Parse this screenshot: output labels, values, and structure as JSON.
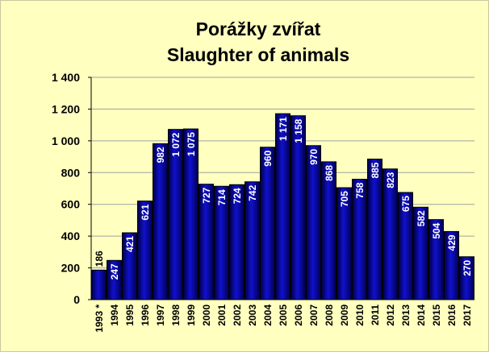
{
  "chart_data": {
    "type": "bar",
    "title": "Porážky zvířat",
    "subtitle": "Slaughter of animals",
    "categories": [
      "1993 *",
      "1994",
      "1995",
      "1996",
      "1997",
      "1998",
      "1999",
      "2000",
      "2001",
      "2002",
      "2003",
      "2004",
      "2005",
      "2006",
      "2007",
      "2008",
      "2009",
      "2010",
      "2011",
      "2012",
      "2013",
      "2014",
      "2015",
      "2016",
      "2017"
    ],
    "values": [
      186,
      247,
      421,
      621,
      982,
      1072,
      1075,
      727,
      714,
      724,
      742,
      960,
      1171,
      1158,
      970,
      868,
      705,
      758,
      885,
      823,
      675,
      582,
      504,
      429,
      270
    ],
    "value_labels": [
      "186",
      "247",
      "421",
      "621",
      "982",
      "1 072",
      "1 075",
      "727",
      "714",
      "724",
      "742",
      "960",
      "1 171",
      "1 158",
      "970",
      "868",
      "705",
      "758",
      "885",
      "823",
      "675",
      "582",
      "504",
      "429",
      "270"
    ],
    "color": "#1010d0",
    "ylim": [
      0,
      1400
    ],
    "yticks": [
      0,
      200,
      400,
      600,
      800,
      {
        "value": 1000,
        "label": "1 000"
      },
      {
        "value": 1200,
        "label": "1 200"
      },
      {
        "value": 1400,
        "label": "1 400"
      }
    ],
    "grid": true
  }
}
